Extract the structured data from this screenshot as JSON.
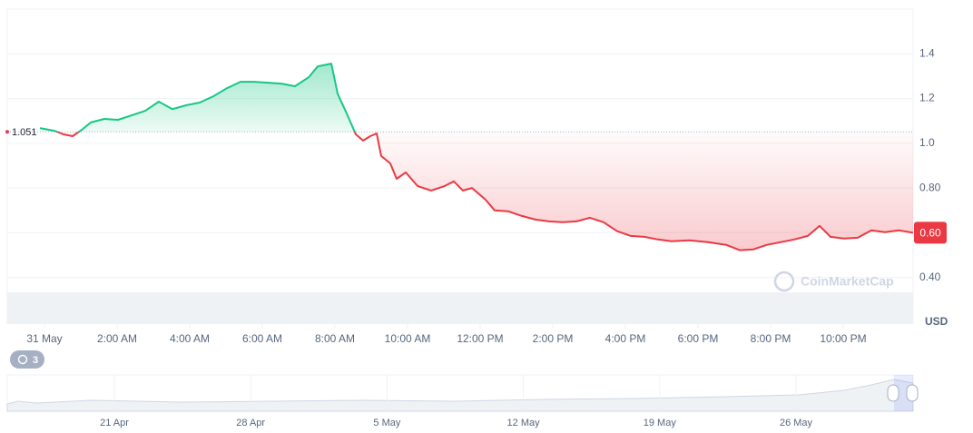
{
  "chart_data": {
    "type": "line",
    "baseline": {
      "value": 1.051,
      "label": "1.051"
    },
    "last_price": {
      "value": 0.6,
      "label": "0.60"
    },
    "up_color": "#16c784",
    "down_color": "#ea3943",
    "currency": "USD",
    "watermark": "CoinMarketCap",
    "history_badge": "3",
    "xlim": [
      -1.025,
      23.925
    ],
    "xticks": [
      {
        "value": 0,
        "label": "31 May"
      },
      {
        "value": 2,
        "label": "2:00 AM"
      },
      {
        "value": 4,
        "label": "4:00 AM"
      },
      {
        "value": 6,
        "label": "6:00 AM"
      },
      {
        "value": 8,
        "label": "8:00 AM"
      },
      {
        "value": 10,
        "label": "10:00 AM"
      },
      {
        "value": 12,
        "label": "12:00 PM"
      },
      {
        "value": 14,
        "label": "2:00 PM"
      },
      {
        "value": 16,
        "label": "4:00 PM"
      },
      {
        "value": 18,
        "label": "6:00 PM"
      },
      {
        "value": 20,
        "label": "8:00 PM"
      },
      {
        "value": 22,
        "label": "10:00 PM"
      }
    ],
    "ylim": [
      0.2,
      1.6
    ],
    "yticks": [
      {
        "value": 0.4,
        "label": "0.40"
      },
      {
        "value": 0.6,
        "label": "0.60"
      },
      {
        "value": 0.8,
        "label": "0.80"
      },
      {
        "value": 1.0,
        "label": "1.0"
      },
      1.2,
      1.4
    ],
    "grid": true,
    "x": [
      -0.125,
      0.275,
      0.525,
      0.775,
      1.025,
      1.275,
      1.65,
      2.025,
      2.4,
      2.775,
      3.15,
      3.525,
      3.9,
      4.275,
      4.65,
      5.025,
      5.4,
      5.775,
      6.15,
      6.525,
      6.9,
      7.275,
      7.525,
      7.9,
      8.075,
      8.325,
      8.575,
      8.775,
      8.975,
      9.15,
      9.275,
      9.525,
      9.7,
      9.95,
      10.275,
      10.65,
      11.025,
      11.275,
      11.525,
      11.775,
      12.15,
      12.4,
      12.775,
      13.15,
      13.525,
      13.9,
      14.275,
      14.65,
      15.025,
      15.4,
      15.775,
      16.15,
      16.525,
      16.9,
      17.275,
      17.775,
      18.275,
      18.775,
      19.15,
      19.525,
      19.9,
      20.275,
      20.65,
      21.025,
      21.35,
      21.65,
      22.025,
      22.4,
      22.775,
      23.15,
      23.525,
      23.925
    ],
    "values": [
      1.068,
      1.056,
      1.04,
      1.032,
      1.06,
      1.093,
      1.109,
      1.105,
      1.125,
      1.145,
      1.186,
      1.153,
      1.17,
      1.182,
      1.21,
      1.246,
      1.275,
      1.275,
      1.271,
      1.267,
      1.255,
      1.295,
      1.344,
      1.356,
      1.222,
      1.133,
      1.04,
      1.012,
      1.032,
      1.044,
      0.943,
      0.91,
      0.841,
      0.87,
      0.809,
      0.789,
      0.809,
      0.83,
      0.789,
      0.8,
      0.748,
      0.7,
      0.696,
      0.675,
      0.659,
      0.651,
      0.647,
      0.651,
      0.667,
      0.647,
      0.607,
      0.586,
      0.582,
      0.57,
      0.562,
      0.566,
      0.558,
      0.546,
      0.522,
      0.526,
      0.546,
      0.558,
      0.57,
      0.586,
      0.631,
      0.582,
      0.574,
      0.578,
      0.611,
      0.603,
      0.611,
      0.6
    ],
    "navigator_labels": [
      "21 Apr",
      "28 Apr",
      "5 May",
      "12 May",
      "19 May",
      "26 May"
    ]
  }
}
